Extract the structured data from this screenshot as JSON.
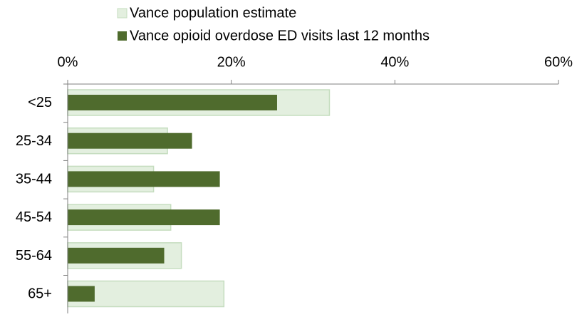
{
  "chart_data": {
    "type": "bar",
    "orientation": "horizontal",
    "categories": [
      "<25",
      "25-34",
      "35-44",
      "45-54",
      "55-64",
      "65+"
    ],
    "series": [
      {
        "name": "Vance population estimate",
        "values": [
          32,
          12.2,
          10.5,
          12.6,
          13.9,
          19.1
        ],
        "color": "#e3efdf",
        "border": "#c5ddbf"
      },
      {
        "name": "Vance opioid overdose ED visits last 12 months",
        "values": [
          25.6,
          15.2,
          18.6,
          18.6,
          11.8,
          3.3
        ],
        "color": "#4f6b2d"
      }
    ],
    "xlim": [
      0,
      60
    ],
    "x_ticks": [
      "0%",
      "20%",
      "40%",
      "60%"
    ],
    "x_tick_values": [
      0,
      20,
      40,
      60
    ],
    "axis_position": "top",
    "legend_position": "top",
    "grid": false,
    "title": "",
    "xlabel": "",
    "ylabel": ""
  }
}
